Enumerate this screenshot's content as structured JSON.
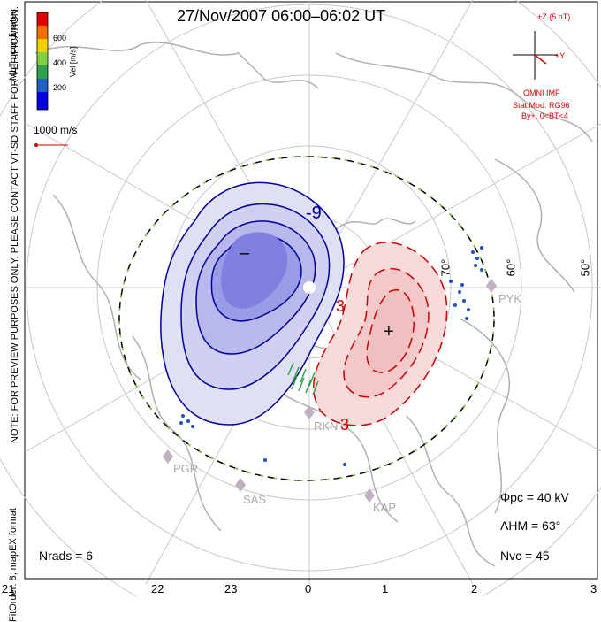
{
  "title": "27/Nov/2007  06:00–06:02  UT",
  "side_note": "NOTE: FOR PREVIEW PURPOSES ONLY. PLEASE CONTACT VT-SD STAFF FOR VERIFICATION.",
  "side_note2": "FitOrder: 8, mapEX format",
  "coords_label": "MLT coordinates",
  "colorbar": {
    "label": "Vel [m/s]",
    "ticks": [
      "600",
      "400",
      "200"
    ],
    "colors": [
      "#e00000",
      "#f07000",
      "#f0d000",
      "#80d040",
      "#30a050",
      "#2060c0",
      "#0000e0"
    ]
  },
  "vector_scale": "1000 m/s",
  "imf": {
    "z_label": "+Z (5 nT)",
    "y_label": "+Y",
    "source": "OMNI IMF",
    "model": "Stat Mod: RG96",
    "condition": "By+,  0<BT<4"
  },
  "contours": {
    "negative_label": "-9",
    "positive_label": "3",
    "positive_label2": "3",
    "minus_sign": "–",
    "plus_sign": "+"
  },
  "latitudes": [
    "70°",
    "60°",
    "50°"
  ],
  "sites": [
    "PYK",
    "RKN",
    "PGR",
    "SAS",
    "KAP"
  ],
  "stats": {
    "phi_pc": "Φpc  =  40 kV",
    "lambda_hm": "ΛHM  =  63°",
    "n_vc": "Nvc  =  45",
    "n_rads": "Nrads  =  6"
  },
  "mlt_ticks": [
    "21",
    "22",
    "23",
    "0",
    "1",
    "2",
    "3"
  ],
  "colors": {
    "negative_fill": "#6a6ae0",
    "positive_fill": "#f0b8b8",
    "negative_line": "#0000a0",
    "positive_line": "#d00000",
    "map_lines": "#b0b0b0"
  }
}
